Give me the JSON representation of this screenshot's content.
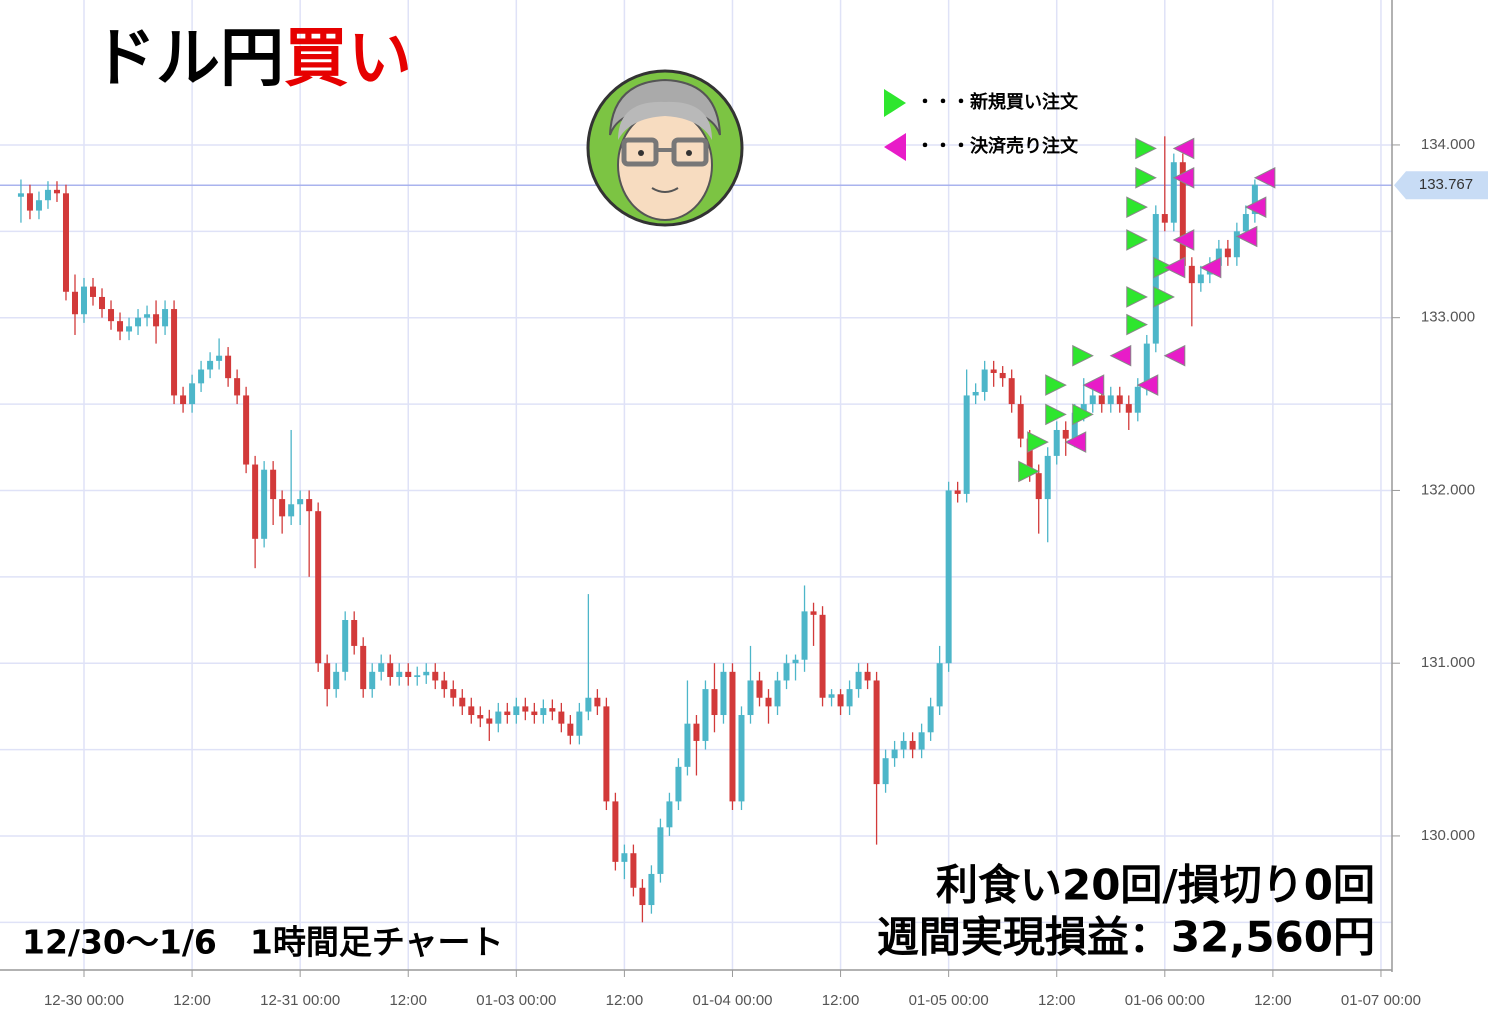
{
  "chart_data": {
    "type": "candlestick",
    "title_parts": [
      "ドル円",
      "買い"
    ],
    "period_label": "12/30〜1/6　1時間足チャート",
    "summary": [
      "利食い20回/損切り0回",
      "週間実現損益：32,560円"
    ],
    "legend": [
      {
        "name": "・・・新規買い注文",
        "color": "#2ee62e"
      },
      {
        "name": "・・・決済売り注文",
        "color": "#e81cc8"
      }
    ],
    "up_color": "#4db6c9",
    "down_color": "#d23a3a",
    "grid": true,
    "ylim": [
      129.224,
      134.839
    ],
    "yticks": [
      {
        "value": 130,
        "label": "130.000"
      },
      {
        "value": 131,
        "label": "131.000"
      },
      {
        "value": 132,
        "label": "132.000"
      },
      {
        "value": 133,
        "label": "133.000"
      },
      {
        "value": 134,
        "label": "134.000"
      }
    ],
    "minor_yticks": [
      129.5,
      130.5,
      131.5,
      132.5,
      133.5
    ],
    "xticks": [
      "12-30 00:00",
      "12:00",
      "12-31 00:00",
      "12:00",
      "01-03 00:00",
      "12:00",
      "01-04 00:00",
      "12:00",
      "01-05 00:00",
      "12:00",
      "01-06 00:00",
      "12:00",
      "01-07 00:00"
    ],
    "last_price": 133.767,
    "x": [
      "12-29 17:00",
      "12-29 18:00",
      "12-29 19:00",
      "12-29 20:00",
      "12-29 21:00",
      "12-29 22:00",
      "12-29 23:00",
      "12-30 00:00",
      "12-30 01:00",
      "12-30 02:00",
      "12-30 03:00",
      "12-30 04:00",
      "12-30 05:00",
      "12-30 06:00",
      "12-30 07:00",
      "12-30 08:00",
      "12-30 09:00",
      "12-30 10:00",
      "12-30 11:00",
      "12-30 12:00",
      "12-30 13:00",
      "12-30 14:00",
      "12-30 15:00",
      "12-30 16:00",
      "12-30 17:00",
      "12-30 18:00",
      "12-30 19:00",
      "12-30 20:00",
      "12-30 21:00",
      "12-30 22:00",
      "12-30 23:00",
      "12-31 00:00",
      "12-31 01:00",
      "12-31 02:00",
      "12-31 03:00",
      "12-31 04:00",
      "12-31 05:00",
      "12-31 06:00",
      "12-31 07:00",
      "12-31 08:00",
      "12-31 09:00",
      "12-31 10:00",
      "12-31 11:00",
      "12-31 12:00",
      "12-31 13:00",
      "12-31 14:00",
      "12-31 15:00",
      "12-31 16:00",
      "12-31 17:00",
      "12-31 18:00",
      "12-31 19:00",
      "12-31 20:00",
      "12-31 21:00",
      "12-31 22:00",
      "12-31 23:00",
      "01-03 00:00",
      "01-03 01:00",
      "01-03 02:00",
      "01-03 03:00",
      "01-03 04:00",
      "01-03 05:00",
      "01-03 06:00",
      "01-03 07:00",
      "01-03 08:00",
      "01-03 09:00",
      "01-03 10:00",
      "01-03 11:00",
      "01-03 12:00",
      "01-03 13:00",
      "01-03 14:00",
      "01-03 15:00",
      "01-03 16:00",
      "01-03 17:00",
      "01-03 18:00",
      "01-03 19:00",
      "01-03 20:00",
      "01-03 21:00",
      "01-03 22:00",
      "01-03 23:00",
      "01-04 00:00",
      "01-04 01:00",
      "01-04 02:00",
      "01-04 03:00",
      "01-04 04:00",
      "01-04 05:00",
      "01-04 06:00",
      "01-04 07:00",
      "01-04 08:00",
      "01-04 09:00",
      "01-04 10:00",
      "01-04 11:00",
      "01-04 12:00",
      "01-04 13:00",
      "01-04 14:00",
      "01-04 15:00",
      "01-04 16:00",
      "01-04 17:00",
      "01-04 18:00",
      "01-04 19:00",
      "01-04 20:00",
      "01-04 21:00",
      "01-04 22:00",
      "01-04 23:00",
      "01-05 00:00",
      "01-05 01:00",
      "01-05 02:00",
      "01-05 03:00",
      "01-05 04:00",
      "01-05 05:00",
      "01-05 06:00",
      "01-05 07:00",
      "01-05 08:00",
      "01-05 09:00",
      "01-05 10:00",
      "01-05 11:00",
      "01-05 12:00",
      "01-05 13:00",
      "01-05 14:00",
      "01-05 15:00",
      "01-05 16:00",
      "01-05 17:00",
      "01-05 18:00",
      "01-05 19:00",
      "01-05 20:00",
      "01-05 21:00",
      "01-05 22:00",
      "01-05 23:00",
      "01-06 00:00",
      "01-06 01:00",
      "01-06 02:00",
      "01-06 03:00",
      "01-06 04:00",
      "01-06 05:00",
      "01-06 06:00",
      "01-06 07:00",
      "01-06 08:00",
      "01-06 09:00",
      "01-06 10:00"
    ],
    "ohlc": [
      [
        133.7,
        133.8,
        133.55,
        133.72
      ],
      [
        133.72,
        133.77,
        133.57,
        133.62
      ],
      [
        133.62,
        133.73,
        133.57,
        133.68
      ],
      [
        133.68,
        133.79,
        133.63,
        133.74
      ],
      [
        133.74,
        133.79,
        133.67,
        133.72
      ],
      [
        133.72,
        133.77,
        133.1,
        133.15
      ],
      [
        133.15,
        133.25,
        132.9,
        133.02
      ],
      [
        133.02,
        133.23,
        132.97,
        133.18
      ],
      [
        133.18,
        133.23,
        133.07,
        133.12
      ],
      [
        133.12,
        133.17,
        133.0,
        133.05
      ],
      [
        133.05,
        133.1,
        132.93,
        132.98
      ],
      [
        132.98,
        133.03,
        132.87,
        132.92
      ],
      [
        132.92,
        133.0,
        132.87,
        132.95
      ],
      [
        132.95,
        133.05,
        132.9,
        133.0
      ],
      [
        133.0,
        133.07,
        132.95,
        133.02
      ],
      [
        133.02,
        133.1,
        132.85,
        132.95
      ],
      [
        132.95,
        133.1,
        132.9,
        133.05
      ],
      [
        133.05,
        133.1,
        132.5,
        132.55
      ],
      [
        132.55,
        132.6,
        132.45,
        132.5
      ],
      [
        132.5,
        132.67,
        132.45,
        132.62
      ],
      [
        132.62,
        132.75,
        132.57,
        132.7
      ],
      [
        132.7,
        132.8,
        132.65,
        132.75
      ],
      [
        132.75,
        132.88,
        132.7,
        132.78
      ],
      [
        132.78,
        132.83,
        132.6,
        132.65
      ],
      [
        132.65,
        132.7,
        132.5,
        132.55
      ],
      [
        132.55,
        132.6,
        132.1,
        132.15
      ],
      [
        132.15,
        132.2,
        131.55,
        131.72
      ],
      [
        131.72,
        132.17,
        131.67,
        132.12
      ],
      [
        132.12,
        132.17,
        131.8,
        131.95
      ],
      [
        131.95,
        132.0,
        131.75,
        131.85
      ],
      [
        131.85,
        132.35,
        131.8,
        131.92
      ],
      [
        131.92,
        132.0,
        131.8,
        131.95
      ],
      [
        131.95,
        132.0,
        131.5,
        131.88
      ],
      [
        131.88,
        131.93,
        130.95,
        131.0
      ],
      [
        131.0,
        131.05,
        130.75,
        130.85
      ],
      [
        130.85,
        131.0,
        130.8,
        130.95
      ],
      [
        130.95,
        131.3,
        130.9,
        131.25
      ],
      [
        131.25,
        131.3,
        131.05,
        131.1
      ],
      [
        131.1,
        131.15,
        130.8,
        130.85
      ],
      [
        130.85,
        131.0,
        130.8,
        130.95
      ],
      [
        130.95,
        131.05,
        130.9,
        131.0
      ],
      [
        131.0,
        131.05,
        130.87,
        130.92
      ],
      [
        130.92,
        131.0,
        130.87,
        130.95
      ],
      [
        130.95,
        131.0,
        130.87,
        130.92
      ],
      [
        130.92,
        130.98,
        130.87,
        130.93
      ],
      [
        130.93,
        131.0,
        130.88,
        130.95
      ],
      [
        130.95,
        131.0,
        130.85,
        130.9
      ],
      [
        130.9,
        130.95,
        130.8,
        130.85
      ],
      [
        130.85,
        130.9,
        130.75,
        130.8
      ],
      [
        130.8,
        130.85,
        130.7,
        130.75
      ],
      [
        130.75,
        130.8,
        130.65,
        130.7
      ],
      [
        130.7,
        130.75,
        130.63,
        130.68
      ],
      [
        130.68,
        130.73,
        130.55,
        130.65
      ],
      [
        130.65,
        130.77,
        130.6,
        130.72
      ],
      [
        130.72,
        130.77,
        130.65,
        130.7
      ],
      [
        130.7,
        130.8,
        130.65,
        130.75
      ],
      [
        130.75,
        130.8,
        130.67,
        130.72
      ],
      [
        130.72,
        130.77,
        130.65,
        130.7
      ],
      [
        130.7,
        130.79,
        130.65,
        130.74
      ],
      [
        130.74,
        130.79,
        130.67,
        130.72
      ],
      [
        130.72,
        130.77,
        130.6,
        130.65
      ],
      [
        130.65,
        130.7,
        130.53,
        130.58
      ],
      [
        130.58,
        130.77,
        130.53,
        130.72
      ],
      [
        130.72,
        131.4,
        130.67,
        130.8
      ],
      [
        130.8,
        130.85,
        130.7,
        130.75
      ],
      [
        130.75,
        130.8,
        130.15,
        130.2
      ],
      [
        130.2,
        130.25,
        129.8,
        129.85
      ],
      [
        129.85,
        129.95,
        129.75,
        129.9
      ],
      [
        129.9,
        129.95,
        129.65,
        129.7
      ],
      [
        129.7,
        129.75,
        129.5,
        129.6
      ],
      [
        129.6,
        129.83,
        129.55,
        129.78
      ],
      [
        129.78,
        130.1,
        129.73,
        130.05
      ],
      [
        130.05,
        130.25,
        130.0,
        130.2
      ],
      [
        130.2,
        130.45,
        130.15,
        130.4
      ],
      [
        130.4,
        130.9,
        130.35,
        130.65
      ],
      [
        130.65,
        130.7,
        130.35,
        130.55
      ],
      [
        130.55,
        130.9,
        130.5,
        130.85
      ],
      [
        130.85,
        131.0,
        130.6,
        130.7
      ],
      [
        130.7,
        131.0,
        130.65,
        130.95
      ],
      [
        130.95,
        131.0,
        130.15,
        130.2
      ],
      [
        130.2,
        130.75,
        130.15,
        130.7
      ],
      [
        130.7,
        131.1,
        130.65,
        130.9
      ],
      [
        130.9,
        130.95,
        130.75,
        130.8
      ],
      [
        130.8,
        130.85,
        130.65,
        130.75
      ],
      [
        130.75,
        130.95,
        130.7,
        130.9
      ],
      [
        130.9,
        131.05,
        130.85,
        131.0
      ],
      [
        131.0,
        131.05,
        130.9,
        131.02
      ],
      [
        131.02,
        131.45,
        130.95,
        131.3
      ],
      [
        131.3,
        131.35,
        131.1,
        131.28
      ],
      [
        131.28,
        131.33,
        130.75,
        130.8
      ],
      [
        130.8,
        130.85,
        130.75,
        130.82
      ],
      [
        130.82,
        130.85,
        130.7,
        130.75
      ],
      [
        130.75,
        130.9,
        130.7,
        130.85
      ],
      [
        130.85,
        131.0,
        130.8,
        130.95
      ],
      [
        130.95,
        131.0,
        130.85,
        130.9
      ],
      [
        130.9,
        130.95,
        129.95,
        130.3
      ],
      [
        130.3,
        130.5,
        130.25,
        130.45
      ],
      [
        130.45,
        130.55,
        130.4,
        130.5
      ],
      [
        130.5,
        130.6,
        130.45,
        130.55
      ],
      [
        130.55,
        130.6,
        130.45,
        130.5
      ],
      [
        130.5,
        130.65,
        130.45,
        130.6
      ],
      [
        130.6,
        130.8,
        130.55,
        130.75
      ],
      [
        130.75,
        131.1,
        130.7,
        131.0
      ],
      [
        131.0,
        132.05,
        130.95,
        132.0
      ],
      [
        132.0,
        132.05,
        131.93,
        131.98
      ],
      [
        131.98,
        132.7,
        131.93,
        132.55
      ],
      [
        132.55,
        132.62,
        132.5,
        132.57
      ],
      [
        132.57,
        132.75,
        132.52,
        132.7
      ],
      [
        132.7,
        132.75,
        132.6,
        132.68
      ],
      [
        132.68,
        132.72,
        132.6,
        132.65
      ],
      [
        132.65,
        132.7,
        132.45,
        132.5
      ],
      [
        132.5,
        132.55,
        132.25,
        132.3
      ],
      [
        132.3,
        132.35,
        132.05,
        132.1
      ],
      [
        132.1,
        132.15,
        131.75,
        131.95
      ],
      [
        131.95,
        132.25,
        131.7,
        132.2
      ],
      [
        132.2,
        132.4,
        132.15,
        132.35
      ],
      [
        132.35,
        132.4,
        132.2,
        132.3
      ],
      [
        132.3,
        132.5,
        132.25,
        132.45
      ],
      [
        132.45,
        132.65,
        132.4,
        132.5
      ],
      [
        132.5,
        132.6,
        132.45,
        132.55
      ],
      [
        132.55,
        132.6,
        132.45,
        132.5
      ],
      [
        132.5,
        132.6,
        132.45,
        132.55
      ],
      [
        132.55,
        132.6,
        132.45,
        132.5
      ],
      [
        132.5,
        132.55,
        132.35,
        132.45
      ],
      [
        132.45,
        132.65,
        132.4,
        132.6
      ],
      [
        132.6,
        132.9,
        132.55,
        132.85
      ],
      [
        132.85,
        133.65,
        132.8,
        133.6
      ],
      [
        133.6,
        134.05,
        133.5,
        133.55
      ],
      [
        133.55,
        133.95,
        133.5,
        133.9
      ],
      [
        133.9,
        133.95,
        133.25,
        133.3
      ],
      [
        133.3,
        133.35,
        132.95,
        133.2
      ],
      [
        133.2,
        133.3,
        133.15,
        133.25
      ],
      [
        133.25,
        133.35,
        133.2,
        133.3
      ],
      [
        133.3,
        133.45,
        133.25,
        133.4
      ],
      [
        133.4,
        133.45,
        133.3,
        133.35
      ],
      [
        133.35,
        133.55,
        133.3,
        133.5
      ],
      [
        133.5,
        133.65,
        133.45,
        133.6
      ],
      [
        133.6,
        133.8,
        133.55,
        133.77
      ]
    ],
    "buy_orders": [
      {
        "x": "01-05 10:00",
        "price": 132.11
      },
      {
        "x": "01-05 11:00",
        "price": 132.28
      },
      {
        "x": "01-05 13:00",
        "price": 132.44
      },
      {
        "x": "01-05 13:00",
        "price": 132.61
      },
      {
        "x": "01-05 16:00",
        "price": 132.44
      },
      {
        "x": "01-05 16:00",
        "price": 132.78
      },
      {
        "x": "01-05 22:00",
        "price": 132.96
      },
      {
        "x": "01-05 22:00",
        "price": 133.12
      },
      {
        "x": "01-05 22:00",
        "price": 133.45
      },
      {
        "x": "01-05 22:00",
        "price": 133.64
      },
      {
        "x": "01-05 23:00",
        "price": 133.81
      },
      {
        "x": "01-05 23:00",
        "price": 133.98
      },
      {
        "x": "01-06 01:00",
        "price": 133.12
      },
      {
        "x": "01-06 01:00",
        "price": 133.29
      }
    ],
    "sell_orders": [
      {
        "x": "01-05 13:00",
        "price": 132.28
      },
      {
        "x": "01-05 15:00",
        "price": 132.61
      },
      {
        "x": "01-05 18:00",
        "price": 132.78
      },
      {
        "x": "01-05 21:00",
        "price": 132.61
      },
      {
        "x": "01-06 00:00",
        "price": 132.78
      },
      {
        "x": "01-06 00:00",
        "price": 133.29
      },
      {
        "x": "01-06 01:00",
        "price": 133.45
      },
      {
        "x": "01-06 01:00",
        "price": 133.81
      },
      {
        "x": "01-06 01:00",
        "price": 133.98
      },
      {
        "x": "01-06 04:00",
        "price": 133.29
      },
      {
        "x": "01-06 08:00",
        "price": 133.47
      },
      {
        "x": "01-06 09:00",
        "price": 133.64
      },
      {
        "x": "01-06 10:00",
        "price": 133.81
      }
    ]
  }
}
